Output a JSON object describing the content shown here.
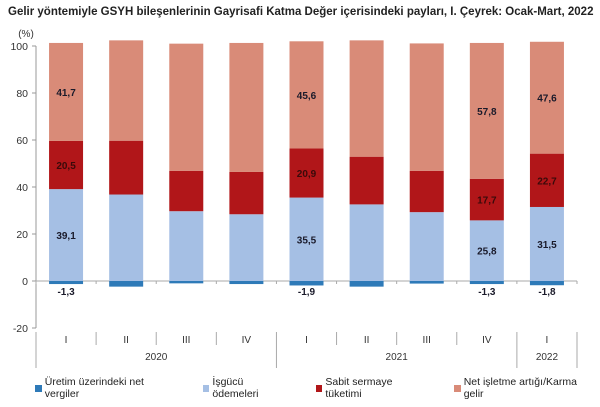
{
  "chart_data": {
    "type": "bar",
    "stacked": true,
    "title": "Gelir yöntemiyle GSYH bileşenlerinin Gayrisafi Katma Değer içerisindeki payları, I. Çeyrek: Ocak-Mart, 2022",
    "ylabel": "(%)",
    "ylim": [
      -20,
      100
    ],
    "yticks": [
      -20,
      0,
      20,
      40,
      60,
      80,
      100
    ],
    "grid": false,
    "legend": "bottom",
    "categories": [
      "I",
      "II",
      "III",
      "IV",
      "I",
      "II",
      "III",
      "IV",
      "I"
    ],
    "years": [
      {
        "label": "2020",
        "span": 4
      },
      {
        "label": "2021",
        "span": 4
      },
      {
        "label": "2022",
        "span": 1
      }
    ],
    "series": [
      {
        "name": "Üretim üzerindeki net vergiler",
        "color": "#2e7ab8",
        "values": [
          -1.3,
          -2.4,
          -1.0,
          -1.3,
          -1.9,
          -2.4,
          -1.1,
          -1.3,
          -1.8
        ],
        "labels": [
          "-1,3",
          "",
          "",
          "",
          "-1,9",
          "",
          "",
          "-1,3",
          "-1,8"
        ]
      },
      {
        "name": "İşgücü ödemeleri",
        "color": "#a5bfe4",
        "values": [
          39.1,
          36.8,
          29.7,
          28.4,
          35.5,
          32.6,
          29.3,
          25.8,
          31.5
        ],
        "labels": [
          "39,1",
          "",
          "",
          "",
          "35,5",
          "",
          "",
          "25,8",
          "31,5"
        ]
      },
      {
        "name": "Sabit sermaye tüketimi",
        "color": "#b11619",
        "values": [
          20.5,
          22.9,
          17.2,
          18.0,
          20.9,
          20.3,
          17.6,
          17.7,
          22.7
        ],
        "labels": [
          "20,5",
          "",
          "",
          "",
          "20,9",
          "",
          "",
          "17,7",
          "22,7"
        ]
      },
      {
        "name": "Net işletme artığı/Karma gelir",
        "color": "#d98b78",
        "values": [
          41.7,
          42.7,
          54.1,
          54.9,
          45.6,
          49.5,
          54.2,
          57.8,
          47.6
        ],
        "labels": [
          "41,7",
          "",
          "",
          "",
          "45,6",
          "",
          "",
          "57,8",
          "47,6"
        ]
      }
    ]
  }
}
